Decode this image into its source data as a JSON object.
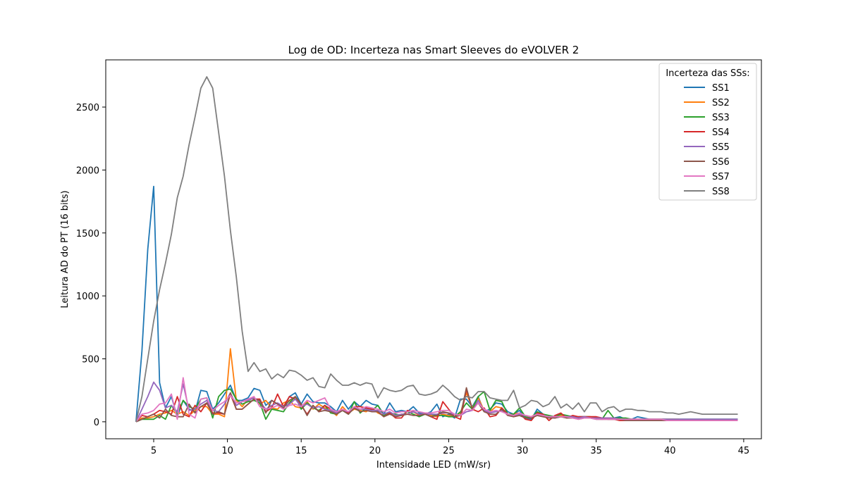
{
  "chart_data": {
    "type": "line",
    "title": "Log de OD: Incerteza nas Smart Sleeves do eVOLVER 2",
    "xlabel": "Intensidade LED (mW/sr)",
    "ylabel": "Leitura AD do PT (16 bits)",
    "xlim": [
      1.75,
      46.2
    ],
    "ylim": [
      -135,
      2875
    ],
    "xticks": [
      5,
      10,
      15,
      20,
      25,
      30,
      35,
      40,
      45
    ],
    "yticks": [
      0,
      500,
      1000,
      1500,
      2000,
      2500
    ],
    "grid": false,
    "legend": {
      "title": "Incerteza das SSs:",
      "placement": "top-right"
    },
    "x": [
      3.8,
      4.2,
      4.6,
      5.0,
      5.4,
      5.8,
      6.2,
      6.6,
      7.0,
      7.4,
      7.8,
      8.2,
      8.6,
      9.0,
      9.4,
      9.8,
      10.2,
      10.6,
      11.0,
      11.4,
      11.8,
      12.2,
      12.6,
      13.0,
      13.4,
      13.8,
      14.2,
      14.6,
      15.0,
      15.4,
      15.8,
      16.2,
      16.6,
      17.0,
      17.4,
      17.8,
      18.2,
      18.6,
      19.0,
      19.4,
      19.8,
      20.2,
      20.6,
      21.0,
      21.4,
      21.8,
      22.2,
      22.6,
      23.0,
      23.4,
      23.8,
      24.2,
      24.6,
      25.0,
      25.4,
      25.8,
      26.2,
      26.6,
      27.0,
      27.4,
      27.8,
      28.2,
      28.6,
      29.0,
      29.4,
      29.8,
      30.2,
      30.6,
      31.0,
      31.4,
      31.8,
      32.2,
      32.6,
      33.0,
      33.4,
      33.8,
      34.2,
      34.6,
      35.0,
      35.4,
      35.8,
      36.2,
      36.6,
      37.0,
      37.4,
      37.8,
      38.2,
      38.6,
      39.0,
      39.4,
      39.8,
      40.2,
      40.6,
      41.0,
      41.4,
      41.8,
      42.2,
      42.6,
      43.0,
      43.4,
      43.8,
      44.2,
      44.6
    ],
    "series": [
      {
        "name": "SS1",
        "color": "#1f77b4",
        "values": [
          0,
          560,
          1370,
          1870,
          310,
          110,
          200,
          40,
          170,
          100,
          80,
          250,
          240,
          100,
          150,
          220,
          290,
          170,
          170,
          190,
          265,
          250,
          130,
          170,
          140,
          110,
          200,
          230,
          140,
          220,
          160,
          150,
          150,
          120,
          80,
          170,
          100,
          160,
          120,
          170,
          140,
          130,
          60,
          150,
          80,
          90,
          80,
          120,
          70,
          60,
          80,
          140,
          40,
          60,
          30,
          180,
          180,
          120,
          200,
          80,
          100,
          150,
          140,
          80,
          60,
          90,
          30,
          20,
          100,
          60,
          40,
          30,
          40,
          40,
          30,
          40,
          40,
          30,
          20,
          30,
          20,
          30,
          40,
          20,
          20,
          40,
          30,
          20,
          20,
          20,
          20,
          20,
          20,
          20,
          20,
          20,
          20,
          20,
          20,
          20,
          20,
          20,
          20
        ]
      },
      {
        "name": "SS2",
        "color": "#ff7f0e",
        "values": [
          0,
          30,
          30,
          40,
          60,
          70,
          90,
          60,
          80,
          50,
          90,
          120,
          120,
          60,
          60,
          40,
          580,
          170,
          120,
          180,
          190,
          140,
          170,
          110,
          100,
          150,
          170,
          120,
          110,
          160,
          100,
          140,
          110,
          90,
          50,
          120,
          70,
          100,
          90,
          80,
          110,
          70,
          50,
          70,
          40,
          60,
          60,
          80,
          50,
          60,
          50,
          40,
          60,
          50,
          40,
          70,
          230,
          110,
          190,
          90,
          80,
          120,
          110,
          60,
          60,
          70,
          50,
          40,
          70,
          50,
          40,
          40,
          50,
          40,
          40,
          30,
          40,
          30,
          30,
          30,
          30,
          30,
          20,
          20,
          20,
          20,
          20,
          20,
          20,
          20,
          20,
          20,
          20,
          10,
          10,
          10,
          10,
          10,
          10,
          10,
          10,
          10,
          10
        ]
      },
      {
        "name": "SS3",
        "color": "#2ca02c",
        "values": [
          0,
          20,
          20,
          20,
          50,
          20,
          130,
          60,
          170,
          120,
          100,
          180,
          190,
          30,
          200,
          250,
          260,
          180,
          140,
          160,
          170,
          150,
          20,
          100,
          90,
          80,
          150,
          200,
          100,
          150,
          110,
          90,
          130,
          70,
          60,
          90,
          60,
          160,
          70,
          110,
          90,
          130,
          50,
          70,
          60,
          50,
          80,
          60,
          40,
          60,
          60,
          50,
          50,
          40,
          40,
          80,
          150,
          100,
          200,
          240,
          90,
          170,
          160,
          60,
          60,
          110,
          40,
          30,
          80,
          60,
          50,
          40,
          60,
          50,
          40,
          30,
          40,
          40,
          30,
          20,
          90,
          30,
          30,
          30,
          20,
          20,
          20,
          20,
          20,
          20,
          20,
          20,
          20,
          20,
          20,
          20,
          20,
          20,
          20,
          20,
          20,
          20,
          20
        ]
      },
      {
        "name": "SS4",
        "color": "#d62728",
        "values": [
          0,
          50,
          40,
          60,
          90,
          80,
          60,
          200,
          60,
          40,
          130,
          80,
          150,
          70,
          70,
          60,
          220,
          100,
          100,
          140,
          180,
          180,
          80,
          110,
          220,
          120,
          200,
          180,
          130,
          60,
          130,
          80,
          130,
          100,
          80,
          90,
          70,
          120,
          120,
          110,
          100,
          80,
          40,
          70,
          30,
          30,
          90,
          80,
          60,
          60,
          40,
          20,
          160,
          100,
          40,
          20,
          260,
          100,
          80,
          110,
          40,
          50,
          110,
          60,
          40,
          70,
          20,
          10,
          70,
          60,
          10,
          50,
          70,
          30,
          50,
          40,
          40,
          40,
          40,
          30,
          20,
          20,
          10,
          10,
          10,
          10,
          10,
          10,
          10,
          10,
          10,
          10,
          10,
          10,
          10,
          10,
          10,
          10,
          10,
          10,
          10,
          10,
          10
        ]
      },
      {
        "name": "SS5",
        "color": "#9467bd",
        "values": [
          0,
          100,
          200,
          315,
          250,
          110,
          130,
          80,
          300,
          90,
          100,
          140,
          170,
          90,
          80,
          140,
          230,
          130,
          160,
          170,
          190,
          160,
          100,
          130,
          150,
          120,
          140,
          180,
          120,
          140,
          110,
          120,
          100,
          90,
          70,
          90,
          80,
          110,
          100,
          100,
          90,
          90,
          60,
          80,
          50,
          60,
          60,
          80,
          60,
          60,
          60,
          60,
          70,
          70,
          60,
          50,
          80,
          90,
          170,
          90,
          70,
          80,
          90,
          60,
          50,
          60,
          50,
          40,
          60,
          50,
          40,
          40,
          40,
          40,
          40,
          30,
          40,
          30,
          30,
          30,
          30,
          30,
          20,
          20,
          20,
          20,
          20,
          20,
          20,
          20,
          20,
          20,
          20,
          20,
          20,
          20,
          20,
          20,
          20,
          20,
          20,
          20,
          20
        ]
      },
      {
        "name": "SS6",
        "color": "#8c564b",
        "values": [
          0,
          20,
          40,
          60,
          30,
          100,
          50,
          40,
          40,
          140,
          70,
          120,
          150,
          60,
          80,
          60,
          230,
          100,
          100,
          140,
          180,
          170,
          70,
          170,
          140,
          110,
          170,
          200,
          140,
          50,
          130,
          80,
          90,
          80,
          60,
          90,
          60,
          110,
          80,
          90,
          80,
          80,
          40,
          60,
          40,
          50,
          60,
          50,
          50,
          60,
          40,
          50,
          80,
          70,
          40,
          50,
          270,
          100,
          150,
          80,
          60,
          60,
          100,
          50,
          40,
          50,
          30,
          30,
          50,
          40,
          30,
          30,
          40,
          30,
          30,
          20,
          30,
          30,
          20,
          20,
          20,
          20,
          20,
          10,
          10,
          10,
          10,
          10,
          10,
          10,
          10,
          10,
          10,
          10,
          10,
          10,
          10,
          10,
          10,
          10,
          10,
          10,
          10
        ]
      },
      {
        "name": "SS7",
        "color": "#e377c2",
        "values": [
          0,
          60,
          70,
          90,
          140,
          150,
          220,
          20,
          350,
          60,
          30,
          180,
          190,
          90,
          130,
          160,
          210,
          150,
          160,
          180,
          200,
          120,
          100,
          110,
          130,
          100,
          130,
          140,
          120,
          170,
          150,
          170,
          190,
          100,
          80,
          100,
          80,
          120,
          100,
          120,
          110,
          100,
          80,
          100,
          70,
          80,
          80,
          90,
          80,
          70,
          70,
          80,
          90,
          90,
          60,
          50,
          100,
          90,
          150,
          100,
          80,
          90,
          80,
          60,
          50,
          70,
          50,
          40,
          60,
          50,
          40,
          40,
          40,
          40,
          30,
          20,
          30,
          30,
          20,
          20,
          20,
          20,
          20,
          20,
          20,
          20,
          20,
          20,
          20,
          20,
          10,
          10,
          10,
          10,
          10,
          10,
          10,
          10,
          10,
          10,
          10,
          10,
          10
        ]
      },
      {
        "name": "SS8",
        "color": "#7f7f7f",
        "values": [
          0,
          200,
          500,
          800,
          1050,
          1260,
          1490,
          1780,
          1950,
          2200,
          2420,
          2650,
          2740,
          2650,
          2300,
          1950,
          1520,
          1150,
          720,
          400,
          470,
          400,
          420,
          340,
          380,
          350,
          410,
          400,
          370,
          330,
          350,
          280,
          270,
          380,
          330,
          290,
          290,
          310,
          290,
          310,
          300,
          190,
          270,
          250,
          240,
          250,
          280,
          290,
          220,
          210,
          220,
          240,
          290,
          250,
          200,
          170,
          200,
          190,
          240,
          240,
          190,
          180,
          170,
          170,
          250,
          110,
          130,
          170,
          160,
          120,
          140,
          200,
          110,
          140,
          100,
          150,
          80,
          150,
          150,
          80,
          110,
          120,
          80,
          100,
          100,
          90,
          90,
          80,
          80,
          80,
          70,
          70,
          60,
          70,
          80,
          70,
          60,
          60,
          60,
          60,
          60,
          60,
          60
        ]
      }
    ]
  }
}
